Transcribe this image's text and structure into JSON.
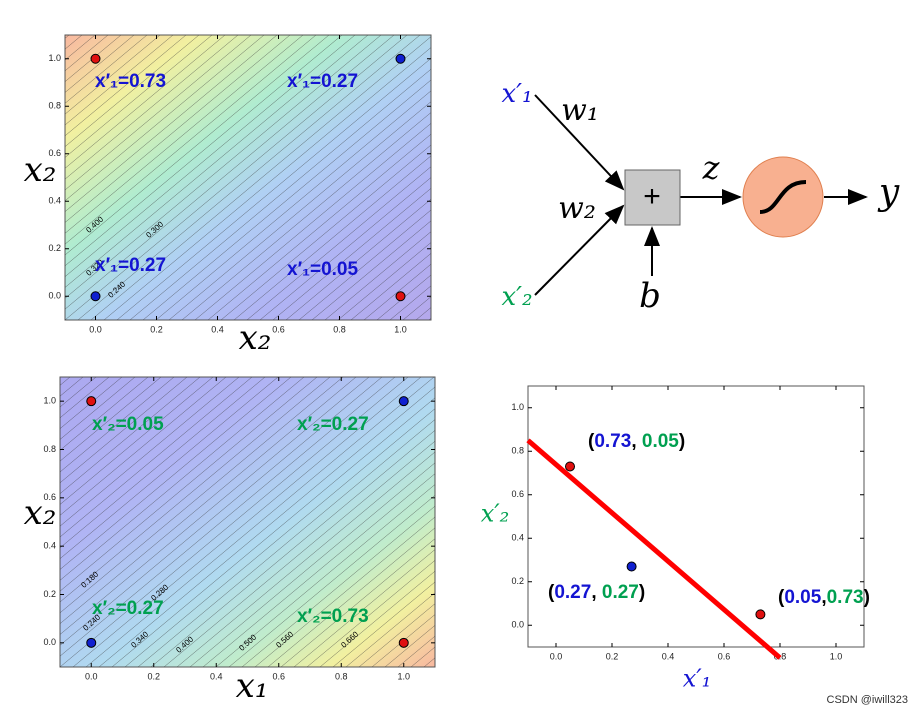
{
  "chart_data": [
    {
      "type": "scatter",
      "x_label": "x₂",
      "y_label": "x₂",
      "xlim": [
        -0.1,
        1.1
      ],
      "ylim": [
        -0.1,
        1.1
      ],
      "xticks": [
        {
          "value": 0,
          "label": "0.0"
        },
        {
          "value": 0.2,
          "label": "0.2"
        },
        {
          "value": 0.4,
          "label": "0.4"
        },
        {
          "value": 0.6,
          "label": "0.6"
        },
        {
          "value": 0.8,
          "label": "0.8"
        },
        {
          "value": 1,
          "label": "1.0"
        }
      ],
      "yticks": [
        {
          "value": 0,
          "label": "0.0"
        },
        {
          "value": 0.2,
          "label": "0.2"
        },
        {
          "value": 0.4,
          "label": "0.4"
        },
        {
          "value": 0.6,
          "label": "0.6"
        },
        {
          "value": 0.8,
          "label": "0.8"
        },
        {
          "value": 1,
          "label": "1.0"
        }
      ],
      "x": [
        0,
        1,
        0,
        1
      ],
      "y": [
        1,
        1,
        0,
        0
      ],
      "colors": [
        "#e01010",
        "#1020d0",
        "#1020d0",
        "#e01010"
      ],
      "annotations": [
        "x′₁=0.73",
        "x′₁=0.27",
        "x′₁=0.27",
        "x′₁=0.05"
      ],
      "annotation_color": "#1414d2",
      "contour_labels": [
        "0.400",
        "0.300",
        "0.320",
        "0.240"
      ],
      "background": "orange-to-purple"
    },
    {
      "type": "scatter",
      "x_label": "x₁",
      "y_label": "x₂",
      "xlim": [
        -0.1,
        1.1
      ],
      "ylim": [
        -0.1,
        1.1
      ],
      "xticks": [
        {
          "value": 0,
          "label": "0.0"
        },
        {
          "value": 0.2,
          "label": "0.2"
        },
        {
          "value": 0.4,
          "label": "0.4"
        },
        {
          "value": 0.6,
          "label": "0.6"
        },
        {
          "value": 0.8,
          "label": "0.8"
        },
        {
          "value": 1,
          "label": "1.0"
        }
      ],
      "yticks": [
        {
          "value": 0,
          "label": "0.0"
        },
        {
          "value": 0.2,
          "label": "0.2"
        },
        {
          "value": 0.4,
          "label": "0.4"
        },
        {
          "value": 0.6,
          "label": "0.6"
        },
        {
          "value": 0.8,
          "label": "0.8"
        },
        {
          "value": 1,
          "label": "1.0"
        }
      ],
      "x": [
        0,
        1,
        0,
        1
      ],
      "y": [
        1,
        1,
        0,
        0
      ],
      "colors": [
        "#e01010",
        "#1020d0",
        "#1020d0",
        "#e01010"
      ],
      "annotations": [
        "x′₂=0.05",
        "x′₂=0.27",
        "x′₂=0.27",
        "x′₂=0.73"
      ],
      "annotation_color": "#00a050",
      "contour_labels": [
        "0.180",
        "0.280",
        "0.240",
        "0.340",
        "0.400",
        "0.500",
        "0.560",
        "0.660"
      ],
      "background": "purple-to-orange"
    },
    {
      "type": "scatter",
      "x_label": "x′₁",
      "y_label": "x′₂",
      "x_label_color": "#1414d2",
      "y_label_color": "#00a050",
      "xlim": [
        -0.1,
        1.1
      ],
      "ylim": [
        -0.1,
        1.1
      ],
      "xticks": [
        {
          "value": 0,
          "label": "0.0"
        },
        {
          "value": 0.2,
          "label": "0.2"
        },
        {
          "value": 0.4,
          "label": "0.4"
        },
        {
          "value": 0.6,
          "label": "0.6"
        },
        {
          "value": 0.8,
          "label": "0.8"
        },
        {
          "value": 1,
          "label": "1.0"
        }
      ],
      "yticks": [
        {
          "value": 0,
          "label": "0.0"
        },
        {
          "value": 0.2,
          "label": "0.2"
        },
        {
          "value": 0.4,
          "label": "0.4"
        },
        {
          "value": 0.6,
          "label": "0.6"
        },
        {
          "value": 0.8,
          "label": "0.8"
        },
        {
          "value": 1,
          "label": "1.0"
        }
      ],
      "x": [
        0.05,
        0.27,
        0.73
      ],
      "y": [
        0.73,
        0.27,
        0.05
      ],
      "colors": [
        "#e01010",
        "#1020d0",
        "#e01010"
      ],
      "line": {
        "x": [
          -0.1,
          0.8
        ],
        "y": [
          0.85,
          -0.15
        ],
        "color": "#ff0000"
      },
      "annotations": [
        {
          "parts": [
            "(",
            "0.73",
            ", ",
            "0.05",
            ")"
          ]
        },
        {
          "parts": [
            "(",
            "0.27",
            ", ",
            "0.27",
            ")"
          ]
        },
        {
          "parts": [
            "(",
            "0.05",
            ",",
            "0.73",
            ")"
          ]
        }
      ],
      "part_colors": [
        "#000000",
        "#1414d2",
        "#000000",
        "#00a050",
        "#000000"
      ]
    }
  ],
  "diagram": {
    "inputs": [
      "x′₁",
      "x′₂"
    ],
    "weights": [
      "w₁",
      "w₂"
    ],
    "sum": "+",
    "bias": "b",
    "z": "z",
    "output": "y"
  },
  "watermark": "CSDN @iwill323"
}
